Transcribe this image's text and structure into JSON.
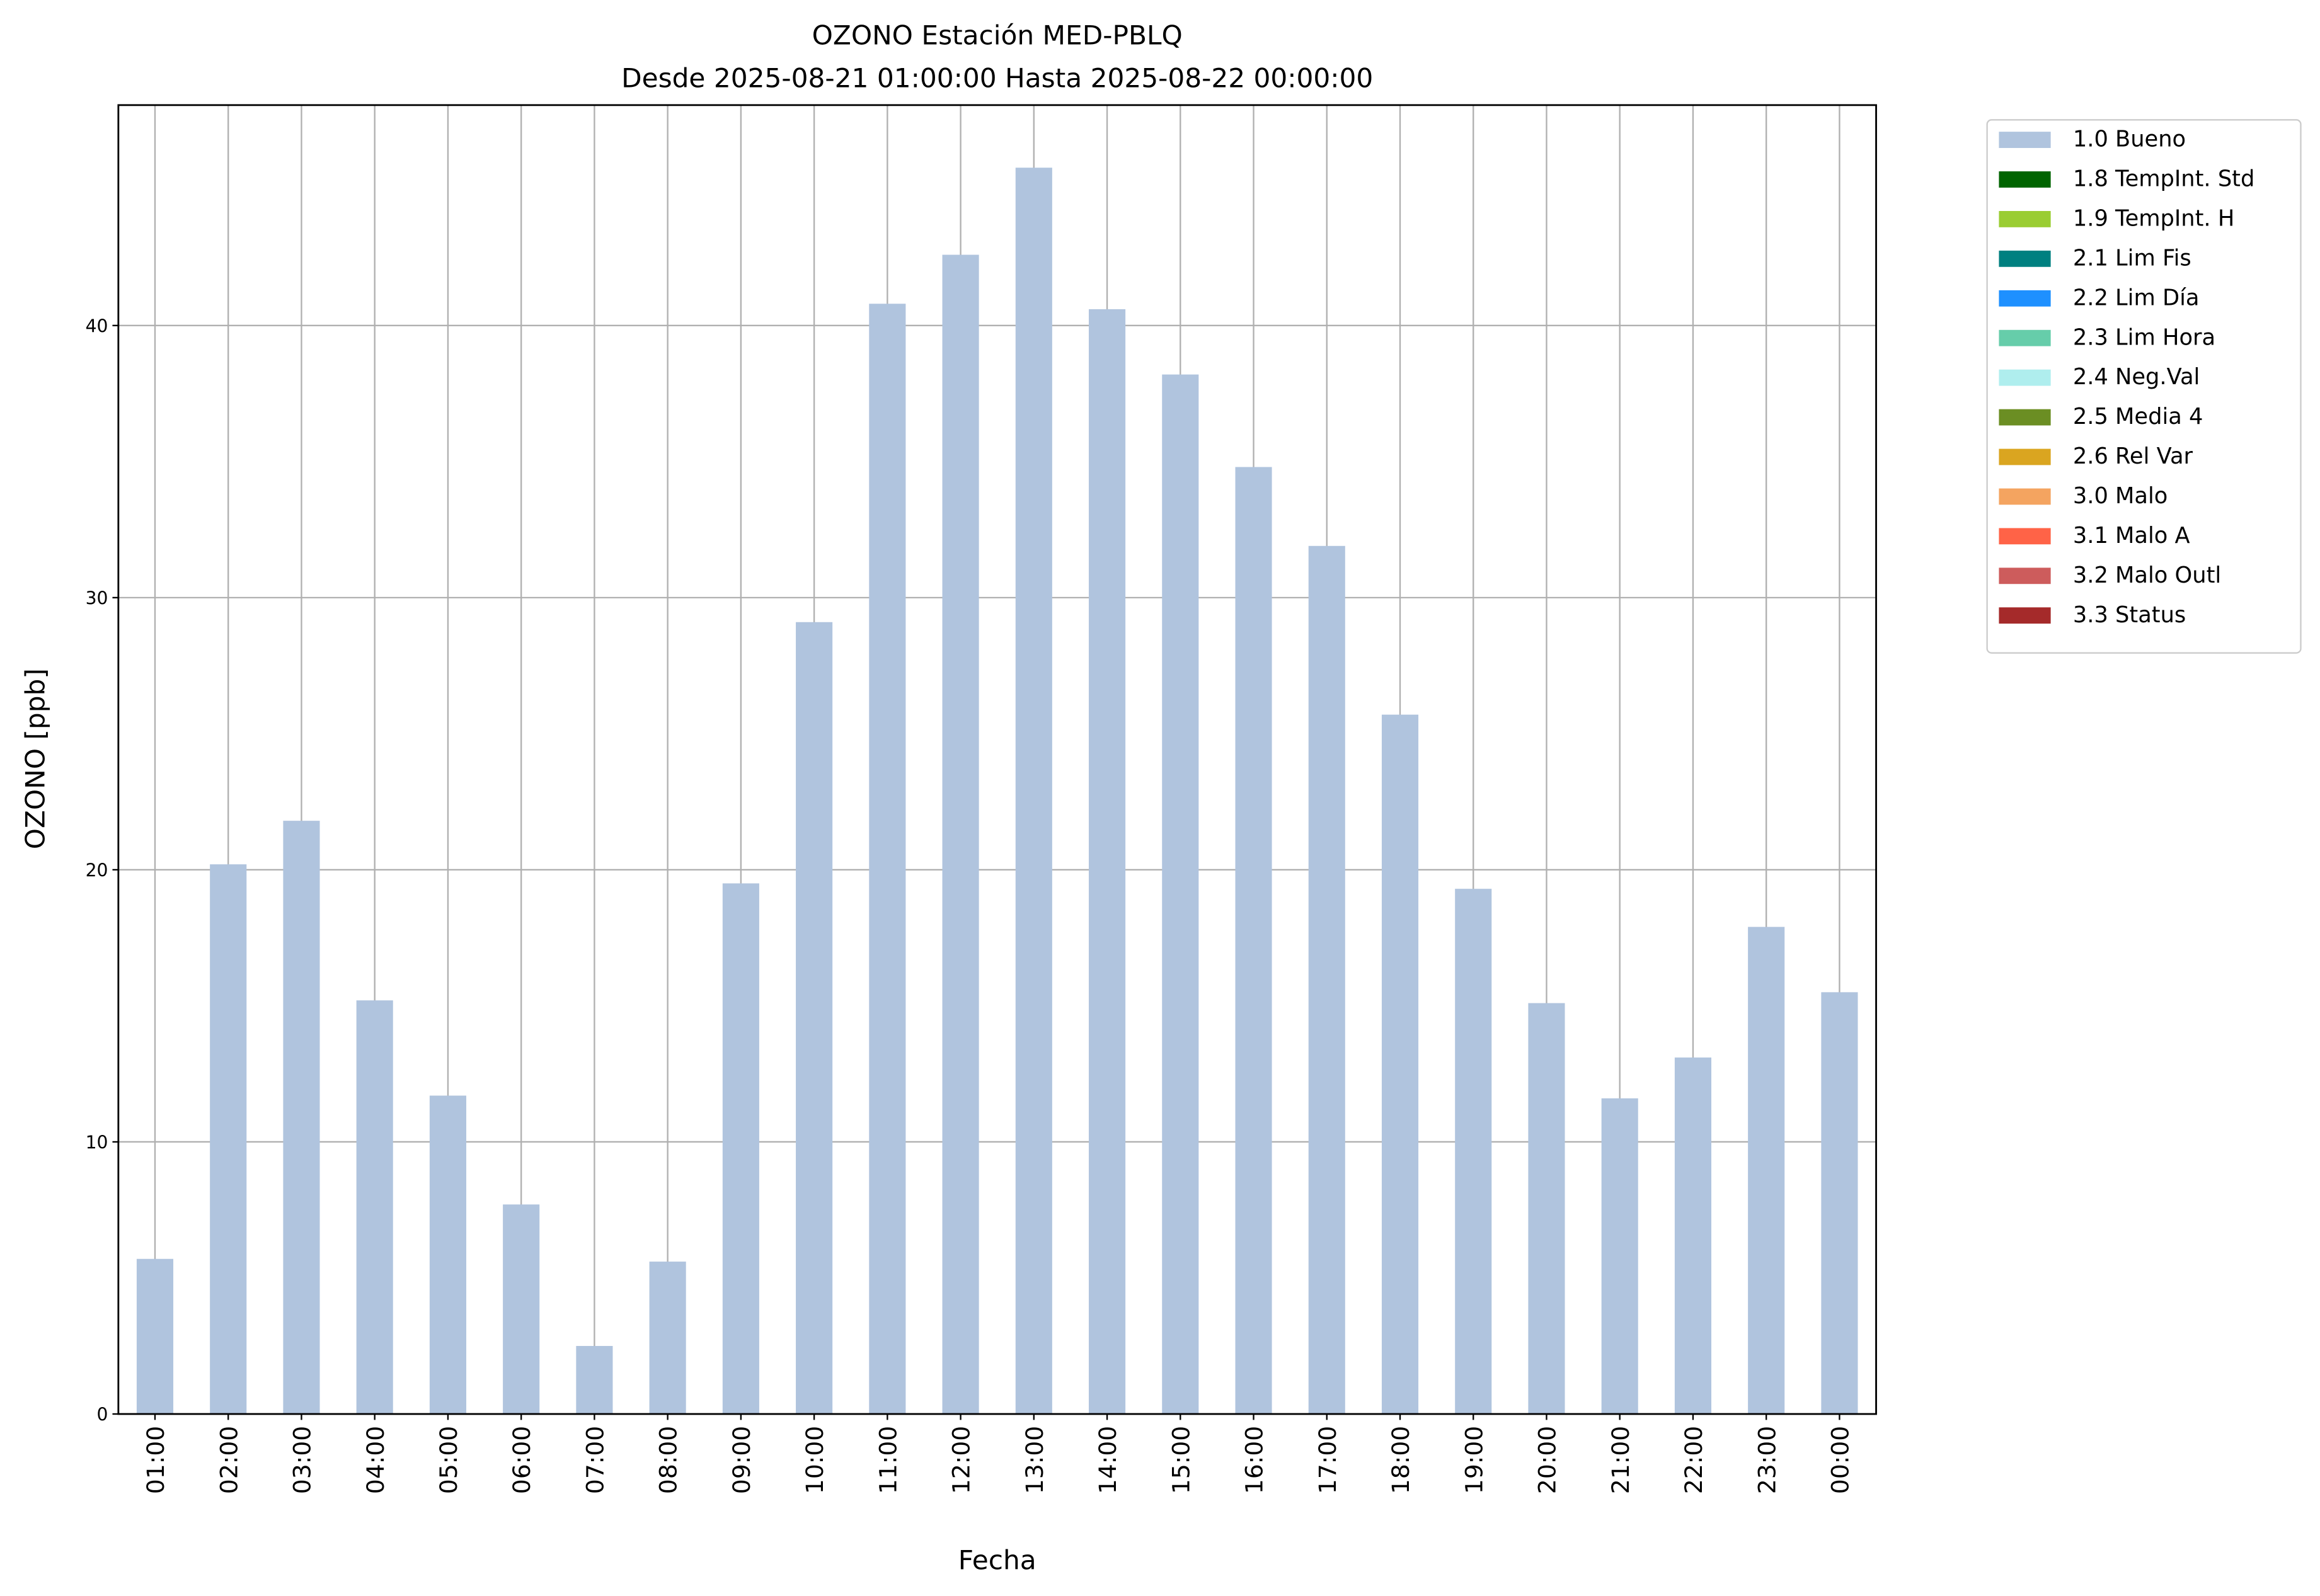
{
  "chart_data": {
    "type": "stacked_bar",
    "title": "OZONO Estación MED-PBLQ",
    "subtitle": "Desde 2025-08-21 01:00:00 Hasta 2025-08-22 00:00:00",
    "x_label": "Fecha",
    "y_label": "OZONO [ppb]",
    "categories": [
      "01:00",
      "02:00",
      "03:00",
      "04:00",
      "05:00",
      "06:00",
      "07:00",
      "08:00",
      "09:00",
      "10:00",
      "11:00",
      "12:00",
      "13:00",
      "14:00",
      "15:00",
      "16:00",
      "17:00",
      "18:00",
      "19:00",
      "20:00",
      "21:00",
      "22:00",
      "23:00",
      "00:00"
    ],
    "series": [
      {
        "name": "1.0 Bueno",
        "color": "#b0c4de",
        "values": [
          5.7,
          20.2,
          21.8,
          15.2,
          11.7,
          7.7,
          2.5,
          5.6,
          19.5,
          29.1,
          40.8,
          42.6,
          45.8,
          40.6,
          38.2,
          34.8,
          31.9,
          25.7,
          19.3,
          15.1,
          11.6,
          13.1,
          17.9,
          15.5
        ]
      },
      {
        "name": "1.8 TempInt. Std",
        "color": "#006400",
        "values": [
          0,
          0,
          0,
          0,
          0,
          0,
          0,
          0,
          0,
          0,
          0,
          0,
          0,
          0,
          0,
          0,
          0,
          0,
          0,
          0,
          0,
          0,
          0,
          0
        ]
      },
      {
        "name": "1.9 TempInt. H",
        "color": "#9acd32",
        "values": [
          0,
          0,
          0,
          0,
          0,
          0,
          0,
          0,
          0,
          0,
          0,
          0,
          0,
          0,
          0,
          0,
          0,
          0,
          0,
          0,
          0,
          0,
          0,
          0
        ]
      },
      {
        "name": "2.1 Lim Fis",
        "color": "#008080",
        "values": [
          0,
          0,
          0,
          0,
          0,
          0,
          0,
          0,
          0,
          0,
          0,
          0,
          0,
          0,
          0,
          0,
          0,
          0,
          0,
          0,
          0,
          0,
          0,
          0
        ]
      },
      {
        "name": "2.2 Lim Día",
        "color": "#1e90ff",
        "values": [
          0,
          0,
          0,
          0,
          0,
          0,
          0,
          0,
          0,
          0,
          0,
          0,
          0,
          0,
          0,
          0,
          0,
          0,
          0,
          0,
          0,
          0,
          0,
          0
        ]
      },
      {
        "name": "2.3 Lim Hora",
        "color": "#66cdaa",
        "values": [
          0,
          0,
          0,
          0,
          0,
          0,
          0,
          0,
          0,
          0,
          0,
          0,
          0,
          0,
          0,
          0,
          0,
          0,
          0,
          0,
          0,
          0,
          0,
          0
        ]
      },
      {
        "name": "2.4 Neg.Val",
        "color": "#afeeee",
        "values": [
          0,
          0,
          0,
          0,
          0,
          0,
          0,
          0,
          0,
          0,
          0,
          0,
          0,
          0,
          0,
          0,
          0,
          0,
          0,
          0,
          0,
          0,
          0,
          0
        ]
      },
      {
        "name": "2.5 Media 4",
        "color": "#6b8e23",
        "values": [
          0,
          0,
          0,
          0,
          0,
          0,
          0,
          0,
          0,
          0,
          0,
          0,
          0,
          0,
          0,
          0,
          0,
          0,
          0,
          0,
          0,
          0,
          0,
          0
        ]
      },
      {
        "name": "2.6 Rel Var",
        "color": "#daa520",
        "values": [
          0,
          0,
          0,
          0,
          0,
          0,
          0,
          0,
          0,
          0,
          0,
          0,
          0,
          0,
          0,
          0,
          0,
          0,
          0,
          0,
          0,
          0,
          0,
          0
        ]
      },
      {
        "name": "3.0 Malo",
        "color": "#f4a460",
        "values": [
          0,
          0,
          0,
          0,
          0,
          0,
          0,
          0,
          0,
          0,
          0,
          0,
          0,
          0,
          0,
          0,
          0,
          0,
          0,
          0,
          0,
          0,
          0,
          0
        ]
      },
      {
        "name": "3.1 Malo A",
        "color": "#ff6347",
        "values": [
          0,
          0,
          0,
          0,
          0,
          0,
          0,
          0,
          0,
          0,
          0,
          0,
          0,
          0,
          0,
          0,
          0,
          0,
          0,
          0,
          0,
          0,
          0,
          0
        ]
      },
      {
        "name": "3.2 Malo Outl",
        "color": "#cd5c5c",
        "values": [
          0,
          0,
          0,
          0,
          0,
          0,
          0,
          0,
          0,
          0,
          0,
          0,
          0,
          0,
          0,
          0,
          0,
          0,
          0,
          0,
          0,
          0,
          0,
          0
        ]
      },
      {
        "name": "3.3 Status",
        "color": "#a52a2a",
        "values": [
          0,
          0,
          0,
          0,
          0,
          0,
          0,
          0,
          0,
          0,
          0,
          0,
          0,
          0,
          0,
          0,
          0,
          0,
          0,
          0,
          0,
          0,
          0,
          0
        ]
      }
    ],
    "ylim": [
      0,
      48.1
    ],
    "yticks": [
      0,
      10,
      20,
      30,
      40
    ],
    "grid": true,
    "legend": "outside-upper-right"
  }
}
